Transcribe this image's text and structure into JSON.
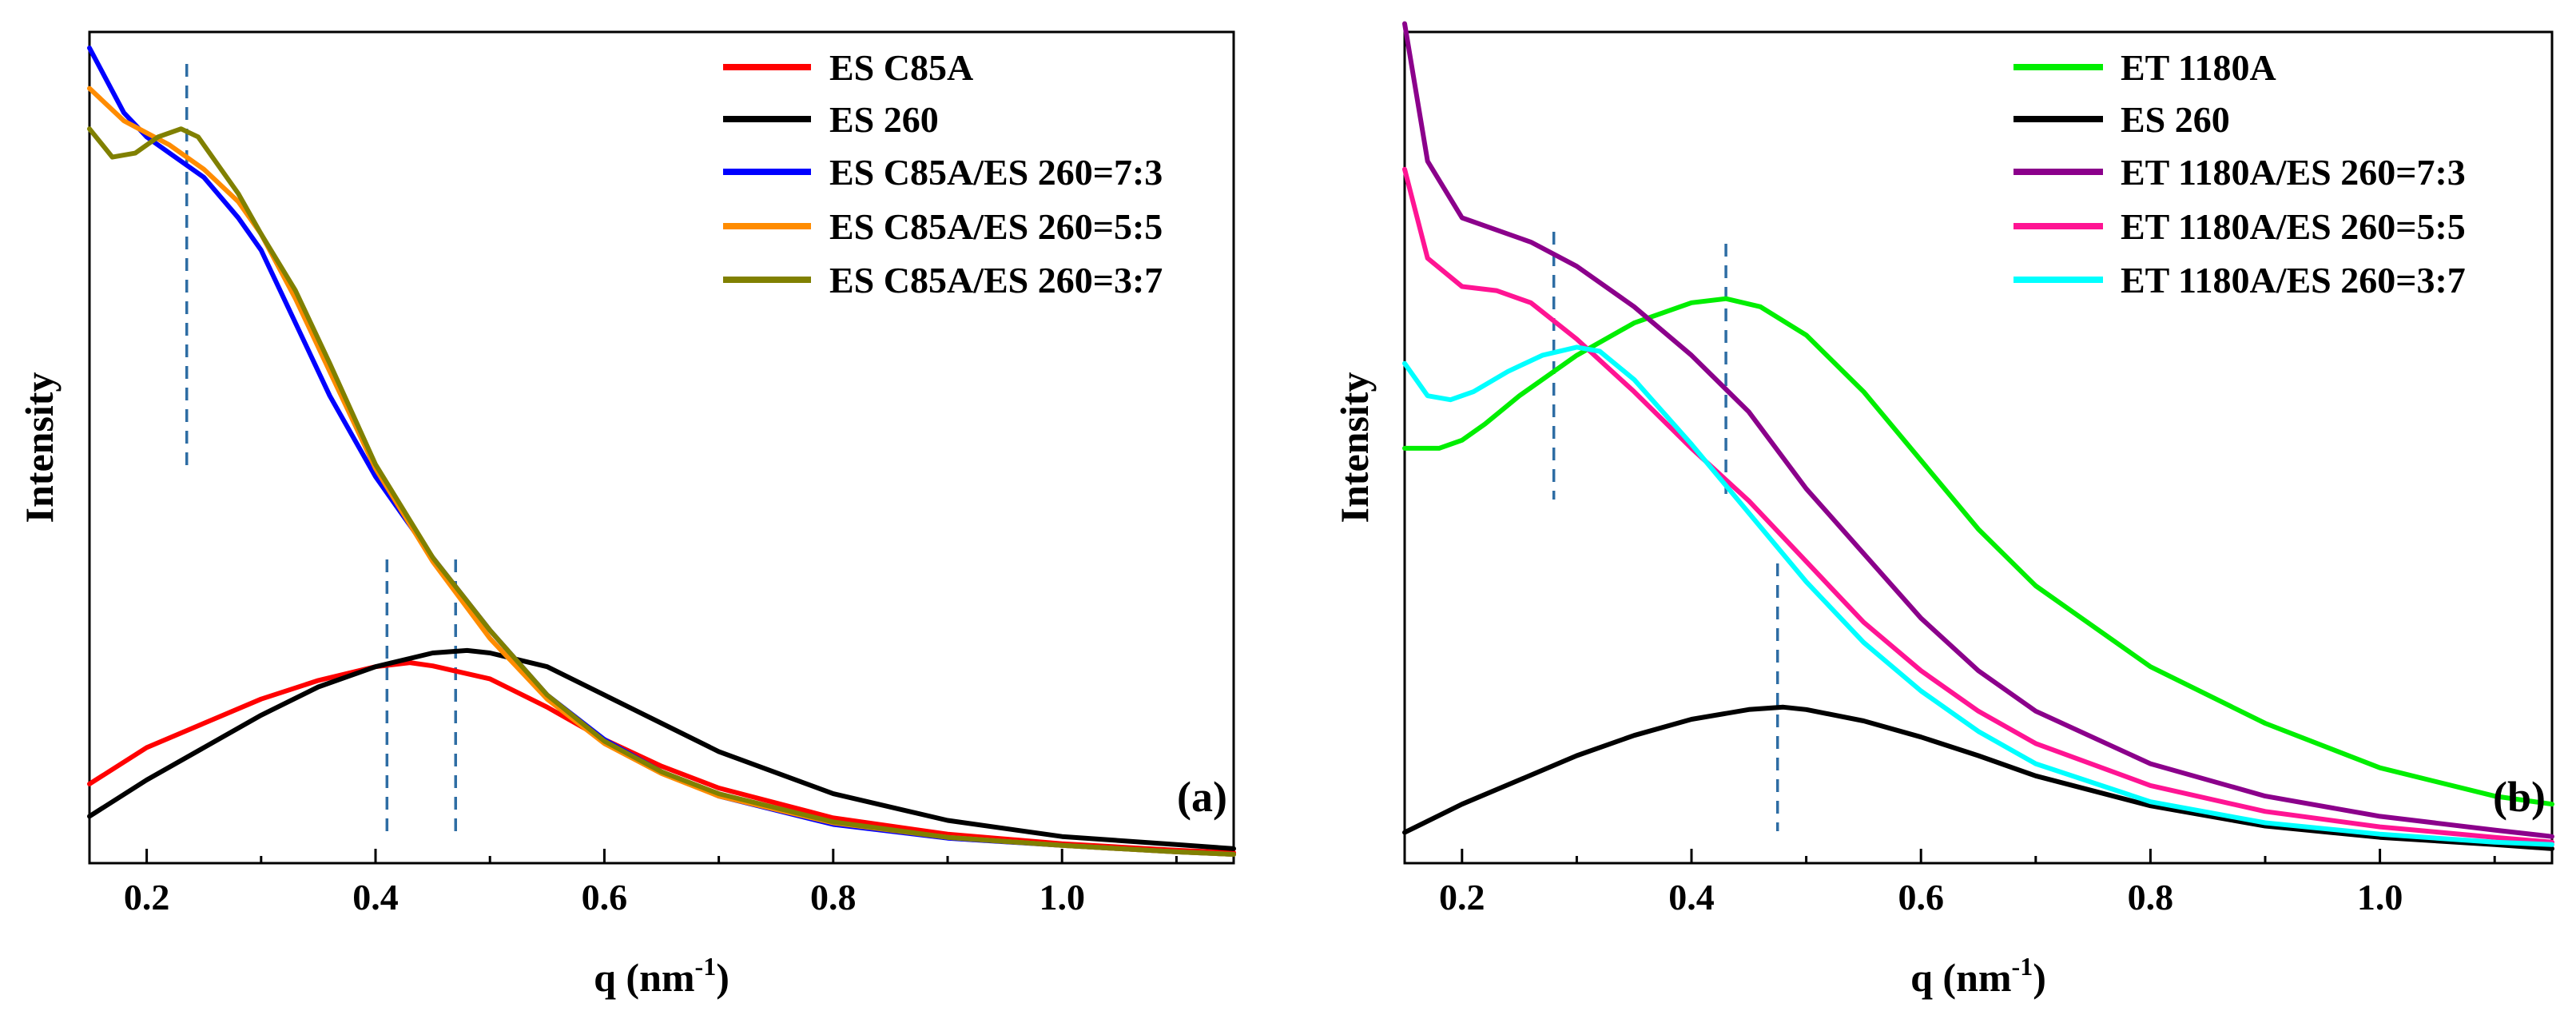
{
  "chart_data": [
    {
      "type": "line",
      "panel_label": "(a)",
      "title": "",
      "xlabel": "q (nm⁻¹)",
      "xlabel_base": "q (nm",
      "xlabel_sup": "-1",
      "xlabel_close": ")",
      "ylabel": "Intensity",
      "xlim": [
        0.15,
        1.15
      ],
      "ylim": [
        0,
        100
      ],
      "xticks": [
        0.2,
        0.4,
        0.6,
        0.8,
        1.0
      ],
      "xtick_labels": [
        "0.2",
        "0.4",
        "0.6",
        "0.8",
        "1.0"
      ],
      "y_tick_labels_shown": false,
      "grid": false,
      "legend_position": "top-right",
      "series": [
        {
          "name": "ES C85A",
          "color": "#ff0000",
          "x": [
            0.15,
            0.2,
            0.25,
            0.3,
            0.35,
            0.4,
            0.43,
            0.45,
            0.5,
            0.55,
            0.6,
            0.65,
            0.7,
            0.8,
            0.9,
            1.0,
            1.1,
            1.15
          ],
          "y": [
            9,
            13.5,
            16.5,
            19.5,
            21.8,
            23.5,
            24,
            23.6,
            22,
            18.5,
            14.5,
            11.2,
            8.5,
            4.8,
            2.8,
            1.6,
            0.8,
            0.5
          ]
        },
        {
          "name": "ES 260",
          "color": "#000000",
          "x": [
            0.15,
            0.2,
            0.25,
            0.3,
            0.35,
            0.4,
            0.45,
            0.48,
            0.5,
            0.55,
            0.6,
            0.65,
            0.7,
            0.8,
            0.9,
            1.0,
            1.1,
            1.15
          ],
          "y": [
            5,
            9.5,
            13.5,
            17.5,
            21,
            23.5,
            25.2,
            25.5,
            25.2,
            23.5,
            20,
            16.5,
            13,
            7.8,
            4.5,
            2.5,
            1.5,
            1
          ]
        },
        {
          "name": "ES C85A/ES 260=7:3",
          "color": "#0000ff",
          "x": [
            0.15,
            0.18,
            0.2,
            0.22,
            0.25,
            0.28,
            0.3,
            0.33,
            0.36,
            0.4,
            0.45,
            0.5,
            0.55,
            0.6,
            0.65,
            0.7,
            0.8,
            0.9,
            1.0,
            1.1,
            1.15
          ],
          "y": [
            100,
            92,
            89,
            87,
            84,
            79,
            75,
            66,
            57,
            47,
            37,
            28,
            20,
            14.5,
            10.5,
            7.5,
            4,
            2.3,
            1.4,
            0.6,
            0.3
          ]
        },
        {
          "name": "ES C85A/ES 260=5:5",
          "color": "#ff8c00",
          "x": [
            0.15,
            0.18,
            0.2,
            0.22,
            0.25,
            0.28,
            0.3,
            0.33,
            0.36,
            0.4,
            0.45,
            0.5,
            0.55,
            0.6,
            0.65,
            0.7,
            0.8,
            0.9,
            1.0,
            1.1,
            1.15
          ],
          "y": [
            95,
            91,
            89.5,
            88,
            85,
            81,
            77,
            69,
            60,
            48,
            36.5,
            27,
            19.5,
            14,
            10.3,
            7.5,
            4.2,
            2.4,
            1.4,
            0.6,
            0.3
          ]
        },
        {
          "name": "ES C85A/ES 260=3:7",
          "color": "#808000",
          "x": [
            0.15,
            0.17,
            0.19,
            0.21,
            0.23,
            0.245,
            0.26,
            0.28,
            0.3,
            0.33,
            0.36,
            0.4,
            0.45,
            0.5,
            0.55,
            0.6,
            0.65,
            0.7,
            0.8,
            0.9,
            1.0,
            1.1,
            1.15
          ],
          "y": [
            90,
            86.5,
            87,
            89,
            90,
            89,
            86,
            82,
            77,
            70,
            61,
            48.5,
            37,
            28,
            20,
            14.3,
            10.5,
            7.8,
            4.3,
            2.4,
            1.4,
            0.6,
            0.3
          ]
        }
      ],
      "reference_lines_x": [
        0.235,
        0.41,
        0.47
      ]
    },
    {
      "type": "line",
      "panel_label": "(b)",
      "title": "",
      "xlabel": "q (nm⁻¹)",
      "xlabel_base": "q (nm",
      "xlabel_sup": "-1",
      "xlabel_close": ")",
      "ylabel": "Intensity",
      "xlim": [
        0.15,
        1.15
      ],
      "ylim": [
        0,
        100
      ],
      "xticks": [
        0.2,
        0.4,
        0.6,
        0.8,
        1.0
      ],
      "xtick_labels": [
        "0.2",
        "0.4",
        "0.6",
        "0.8",
        "1.0"
      ],
      "y_tick_labels_shown": false,
      "grid": false,
      "legend_position": "top-right",
      "series": [
        {
          "name": "ET 1180A",
          "color": "#00ee00",
          "x": [
            0.15,
            0.18,
            0.2,
            0.22,
            0.25,
            0.3,
            0.35,
            0.4,
            0.43,
            0.46,
            0.5,
            0.55,
            0.6,
            0.65,
            0.7,
            0.8,
            0.9,
            1.0,
            1.1,
            1.15
          ],
          "y": [
            50.5,
            50.5,
            51.5,
            53.5,
            57,
            62,
            66,
            68.5,
            69,
            68,
            64.5,
            57.5,
            49,
            40.5,
            33.5,
            23.5,
            16.5,
            11,
            7.5,
            6.5
          ]
        },
        {
          "name": "ES 260",
          "color": "#000000",
          "x": [
            0.15,
            0.2,
            0.25,
            0.3,
            0.35,
            0.4,
            0.45,
            0.48,
            0.5,
            0.55,
            0.6,
            0.65,
            0.7,
            0.8,
            0.9,
            1.0,
            1.1,
            1.15
          ],
          "y": [
            3,
            6.5,
            9.5,
            12.5,
            15,
            17,
            18.2,
            18.5,
            18.2,
            16.8,
            14.8,
            12.5,
            10,
            6.3,
            3.8,
            2.4,
            1.5,
            1
          ]
        },
        {
          "name": "ET 1180A/ES 260=7:3",
          "color": "#8b008b",
          "x": [
            0.15,
            0.17,
            0.2,
            0.23,
            0.26,
            0.3,
            0.35,
            0.4,
            0.45,
            0.5,
            0.55,
            0.6,
            0.65,
            0.7,
            0.8,
            0.9,
            1.0,
            1.1,
            1.15
          ],
          "y": [
            103,
            86,
            79,
            77.5,
            76,
            73,
            68,
            62,
            55,
            45.5,
            37.5,
            29.5,
            23,
            18,
            11.5,
            7.5,
            5,
            3.3,
            2.5
          ]
        },
        {
          "name": "ET 1180A/ES 260=5:5",
          "color": "#ff1493",
          "x": [
            0.15,
            0.17,
            0.2,
            0.23,
            0.26,
            0.3,
            0.35,
            0.4,
            0.45,
            0.5,
            0.55,
            0.6,
            0.65,
            0.7,
            0.8,
            0.9,
            1.0,
            1.1,
            1.15
          ],
          "y": [
            85,
            74,
            70.5,
            70,
            68.5,
            64,
            57.5,
            50.5,
            44,
            36.5,
            29,
            23,
            18,
            14,
            8.8,
            5.6,
            3.7,
            2.4,
            1.8
          ]
        },
        {
          "name": "ET 1180A/ES 260=3:7",
          "color": "#00ffff",
          "x": [
            0.15,
            0.17,
            0.19,
            0.21,
            0.24,
            0.27,
            0.3,
            0.32,
            0.35,
            0.4,
            0.45,
            0.5,
            0.55,
            0.6,
            0.65,
            0.7,
            0.8,
            0.9,
            1.0,
            1.1,
            1.15
          ],
          "y": [
            61,
            57,
            56.5,
            57.5,
            60,
            62,
            63,
            62.5,
            59,
            51,
            42.5,
            34,
            26.5,
            20.5,
            15.5,
            11.5,
            6.8,
            4.2,
            2.8,
            1.8,
            1.5
          ]
        }
      ],
      "reference_lines_x": [
        0.28,
        0.43,
        0.475
      ]
    }
  ]
}
